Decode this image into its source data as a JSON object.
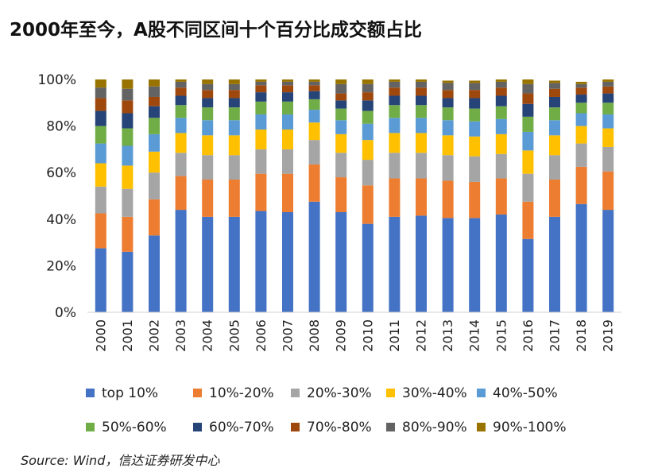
{
  "chart_data": {
    "type": "bar",
    "stacked": true,
    "title": "2000年至今，A股不同区间十个百分比成交额占比",
    "xlabel": "",
    "ylabel": "",
    "ylim": [
      0,
      100
    ],
    "yticks": [
      "0%",
      "20%",
      "40%",
      "60%",
      "80%",
      "100%"
    ],
    "yticks_values": [
      0,
      20,
      40,
      60,
      80,
      100
    ],
    "categories": [
      "2000",
      "2001",
      "2002",
      "2003",
      "2004",
      "2005",
      "2006",
      "2007",
      "2008",
      "2009",
      "2010",
      "2011",
      "2012",
      "2013",
      "2014",
      "2015",
      "2016",
      "2017",
      "2018",
      "2019"
    ],
    "series": [
      {
        "name": "top 10%",
        "color": "#4472C4",
        "values": [
          27.5,
          26,
          33,
          44,
          41,
          41,
          43.5,
          43,
          47.5,
          43,
          38,
          41,
          41.5,
          40.5,
          40.5,
          42,
          31.5,
          41,
          46.5,
          44
        ]
      },
      {
        "name": "10%-20%",
        "color": "#ED7D31",
        "values": [
          15,
          15,
          15.5,
          14.5,
          16,
          16,
          16,
          16.5,
          16,
          15,
          16.5,
          16.5,
          16,
          16,
          15.5,
          15.5,
          16,
          16,
          16,
          16.5
        ]
      },
      {
        "name": "20%-30%",
        "color": "#A5A5A5",
        "values": [
          11.5,
          12,
          11.5,
          10,
          10.5,
          10.5,
          10.5,
          10.5,
          10.5,
          10.5,
          11,
          11,
          11,
          11,
          11,
          10.5,
          12,
          10.5,
          10,
          10.5
        ]
      },
      {
        "name": "30%-40%",
        "color": "#FFC000",
        "values": [
          10,
          10,
          9,
          8.5,
          8.5,
          8.5,
          8.5,
          8.5,
          7.5,
          8,
          8.5,
          8.5,
          8.5,
          8.5,
          8.5,
          8.5,
          10,
          8.5,
          7.5,
          8
        ]
      },
      {
        "name": "40%-50%",
        "color": "#5B9BD5",
        "values": [
          8.5,
          8.5,
          7.5,
          6.5,
          6.5,
          6.5,
          6.5,
          6.5,
          5.5,
          6,
          7,
          6.5,
          6.5,
          6.5,
          6.5,
          6.5,
          8,
          6.5,
          5.5,
          6
        ]
      },
      {
        "name": "50%-60%",
        "color": "#70AD47",
        "values": [
          7.5,
          7.5,
          7,
          5.5,
          5.5,
          5.5,
          5.5,
          5.5,
          4.5,
          5,
          5.5,
          5.5,
          5.5,
          5.5,
          5.5,
          5.5,
          6.5,
          5.5,
          4.5,
          5
        ]
      },
      {
        "name": "60%-70%",
        "color": "#264478",
        "values": [
          6.5,
          6.5,
          5,
          4,
          4,
          4,
          4,
          4,
          3.5,
          3.5,
          4.5,
          4,
          4,
          4,
          4.5,
          4.5,
          5.5,
          4.5,
          3.5,
          4
        ]
      },
      {
        "name": "70%-80%",
        "color": "#9E480E",
        "values": [
          5.5,
          5.5,
          4,
          3.5,
          3.5,
          3.5,
          3,
          3,
          2.5,
          3,
          3.5,
          3.5,
          3.5,
          3.5,
          3.5,
          3.5,
          4.5,
          3.5,
          3,
          3
        ]
      },
      {
        "name": "80%-90%",
        "color": "#636363",
        "values": [
          4.5,
          5,
          4.5,
          2.5,
          2.5,
          2.5,
          1.5,
          1.5,
          1.5,
          4,
          3.5,
          2.5,
          2.5,
          3,
          3,
          2.5,
          4,
          2.5,
          1.5,
          2
        ]
      },
      {
        "name": "90%-100%",
        "color": "#997300",
        "values": [
          3.5,
          4,
          3,
          1,
          2,
          2,
          1,
          1,
          1,
          2,
          2,
          1,
          1,
          1,
          1,
          1,
          2,
          1,
          1,
          1
        ]
      }
    ]
  },
  "source": "Source: Wind，信达证券研发中心"
}
